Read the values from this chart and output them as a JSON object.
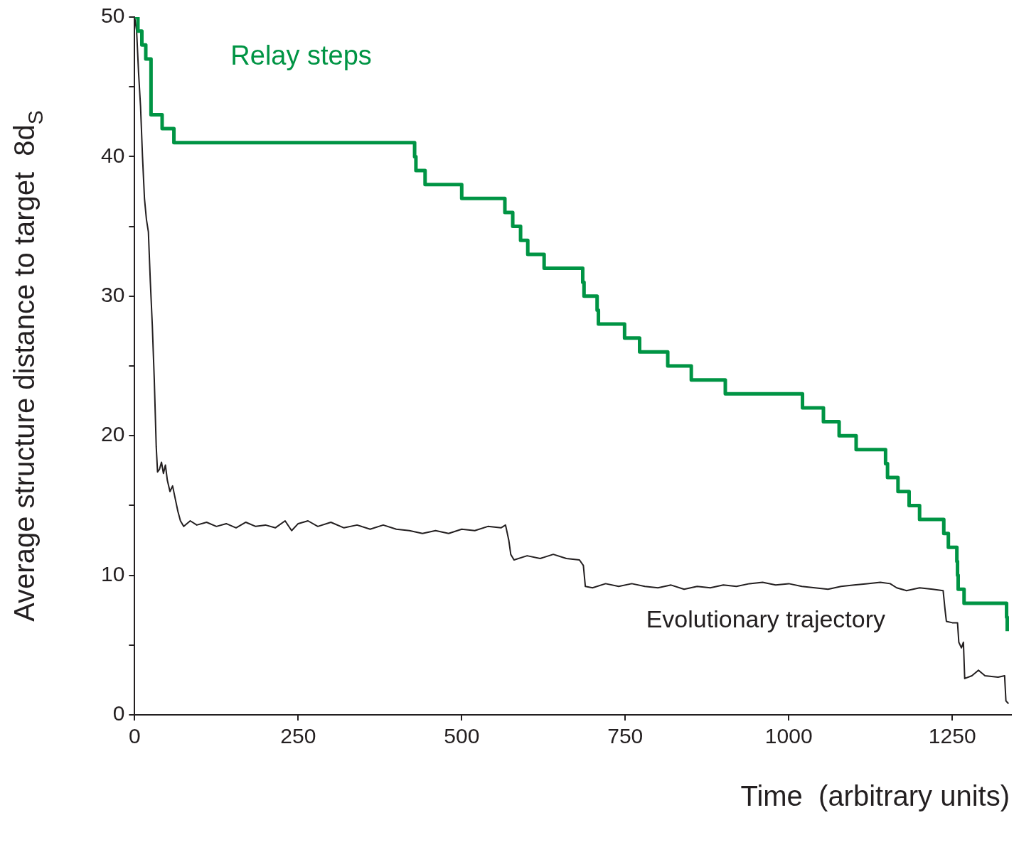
{
  "chart_data": {
    "type": "line",
    "xlabel": "Time  (arbitrary units)",
    "ylabel": "Average structure distance to target  8d$_{S}$",
    "xlim": [
      0,
      1340
    ],
    "xticks": [
      0,
      250,
      500,
      750,
      1000,
      1250
    ],
    "ylim": [
      0,
      50
    ],
    "yticks": [
      0,
      {
        "value": 5,
        "label": null
      },
      10,
      {
        "value": 15,
        "label": null
      },
      20,
      {
        "value": 25,
        "label": null
      },
      30,
      {
        "value": 35,
        "label": null
      },
      40,
      {
        "value": 45,
        "label": null
      },
      50
    ],
    "grid": false,
    "legend": false,
    "marker": "none",
    "series": [
      {
        "name": "Relay steps",
        "type": "step",
        "color": "#009444",
        "x": [
          0,
          5,
          11,
          17,
          25,
          42,
          60,
          428,
          430,
          444,
          500,
          566,
          578,
          590,
          601,
          626,
          685,
          687,
          707,
          709,
          749,
          772,
          815,
          851,
          903,
          1021,
          1053,
          1077,
          1103,
          1148,
          1151,
          1167,
          1184,
          1200,
          1237,
          1244,
          1257,
          1258,
          1259,
          1268,
          1333,
          1334
        ],
        "values": [
          50,
          49,
          48,
          47,
          43,
          42,
          41,
          40,
          39,
          38,
          37,
          36,
          35,
          34,
          33,
          32,
          31,
          30,
          29,
          28,
          27,
          26,
          25,
          24,
          23,
          22,
          21,
          20,
          19,
          18,
          17,
          16,
          15,
          14,
          13,
          12,
          11,
          10,
          9,
          8,
          7,
          6
        ]
      },
      {
        "name": "Evolutionary trajectory",
        "type": "line",
        "color": "#231f20",
        "x": [
          0,
          3,
          6,
          9,
          12,
          15,
          18,
          21,
          24,
          27,
          30,
          33,
          35,
          38,
          41,
          44,
          47,
          50,
          54,
          58,
          62,
          66,
          70,
          75,
          85,
          95,
          110,
          125,
          140,
          155,
          170,
          185,
          200,
          215,
          230,
          240,
          250,
          265,
          280,
          300,
          320,
          340,
          360,
          380,
          400,
          420,
          440,
          460,
          480,
          500,
          520,
          540,
          560,
          567,
          572,
          575,
          580,
          600,
          620,
          640,
          660,
          680,
          686,
          689,
          700,
          720,
          740,
          760,
          780,
          800,
          820,
          840,
          860,
          880,
          900,
          920,
          940,
          960,
          980,
          1000,
          1020,
          1040,
          1060,
          1080,
          1100,
          1120,
          1140,
          1155,
          1165,
          1180,
          1200,
          1220,
          1236,
          1239,
          1241,
          1250,
          1258,
          1260,
          1264,
          1267,
          1269,
          1280,
          1290,
          1300,
          1320,
          1330,
          1332,
          1336
        ],
        "values": [
          50,
          49,
          46,
          43.6,
          40,
          37,
          35.5,
          34.6,
          31,
          27.9,
          24,
          19.2,
          17.4,
          17.6,
          18.1,
          17.3,
          17.9,
          16.8,
          16,
          16.4,
          15.5,
          14.6,
          13.9,
          13.5,
          13.9,
          13.6,
          13.8,
          13.5,
          13.7,
          13.4,
          13.8,
          13.5,
          13.6,
          13.4,
          13.9,
          13.2,
          13.7,
          13.9,
          13.5,
          13.8,
          13.4,
          13.6,
          13.3,
          13.6,
          13.3,
          13.2,
          13.0,
          13.2,
          13.0,
          13.3,
          13.2,
          13.5,
          13.4,
          13.6,
          12.5,
          11.5,
          11.1,
          11.4,
          11.2,
          11.5,
          11.2,
          11.1,
          10.7,
          9.2,
          9.1,
          9.4,
          9.2,
          9.4,
          9.2,
          9.1,
          9.3,
          9.0,
          9.2,
          9.1,
          9.3,
          9.2,
          9.4,
          9.5,
          9.3,
          9.4,
          9.2,
          9.1,
          9.0,
          9.2,
          9.3,
          9.4,
          9.5,
          9.4,
          9.1,
          8.9,
          9.1,
          9.0,
          8.9,
          7.5,
          6.7,
          6.6,
          6.6,
          5.2,
          4.8,
          5.2,
          2.6,
          2.8,
          3.2,
          2.8,
          2.7,
          2.8,
          1.0,
          0.8
        ]
      }
    ]
  }
}
